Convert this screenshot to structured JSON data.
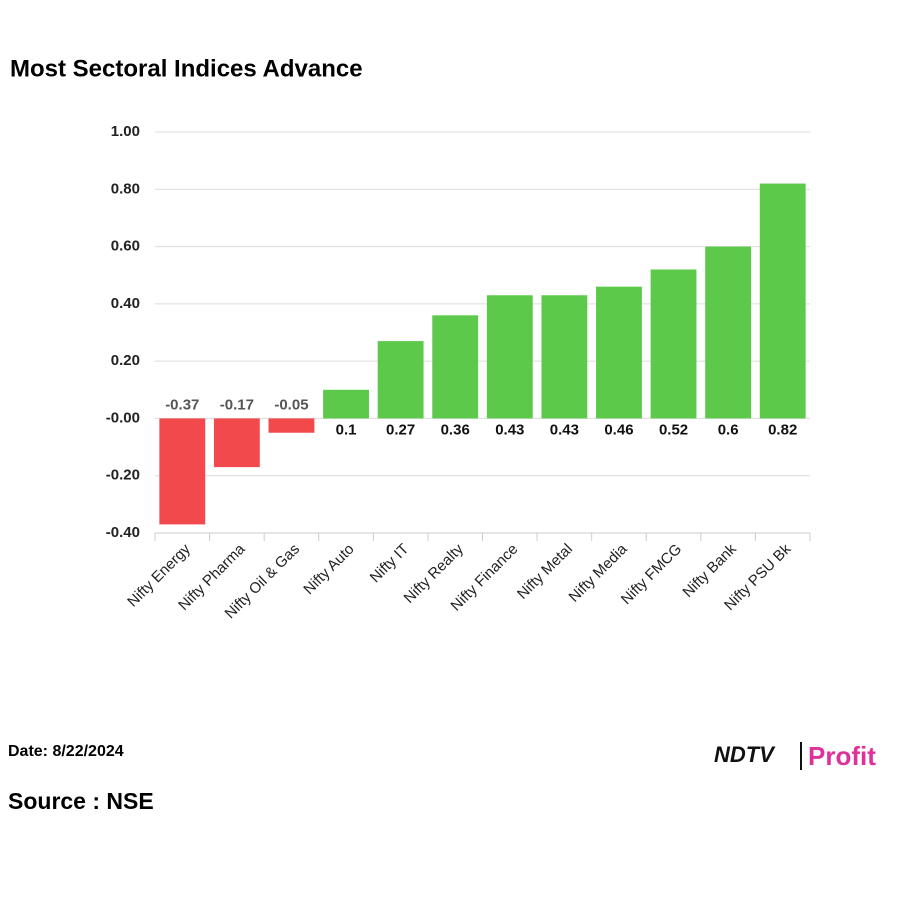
{
  "chart_data": {
    "type": "bar",
    "title": "Most Sectoral Indices Advance",
    "categories": [
      "Nifty Energy",
      "Nifty Pharma",
      "Nifty Oil & Gas",
      "Nifty Auto",
      "Nifty IT",
      "Nifty Realty",
      "Nifty Finance",
      "Nifty Metal",
      "Nifty Media",
      "Nifty FMCG",
      "Nifty Bank",
      "Nifty PSU Bk"
    ],
    "values": [
      -0.37,
      -0.17,
      -0.05,
      0.1,
      0.27,
      0.36,
      0.43,
      0.43,
      0.46,
      0.52,
      0.6,
      0.82
    ],
    "color": "#5cc94a",
    "negative_color": "#f24a4c",
    "ylim": [
      -0.4,
      1.0
    ],
    "yticks": [
      {
        "value": -0.4,
        "label": "-0.40"
      },
      {
        "value": -0.2,
        "label": "-0.20"
      },
      {
        "value": 0,
        "label": "-0.00"
      },
      {
        "value": 0.2,
        "label": "0.20"
      },
      {
        "value": 0.4,
        "label": "0.40"
      },
      {
        "value": 0.6,
        "label": "0.60"
      },
      {
        "value": 0.8,
        "label": "0.80"
      },
      {
        "value": 1.0,
        "label": "1.00"
      }
    ],
    "grid": true
  },
  "footer": {
    "date": "Date: 8/22/2024",
    "source": "Source : NSE",
    "logo_brand": "NDTV",
    "logo_product": "Profit"
  }
}
